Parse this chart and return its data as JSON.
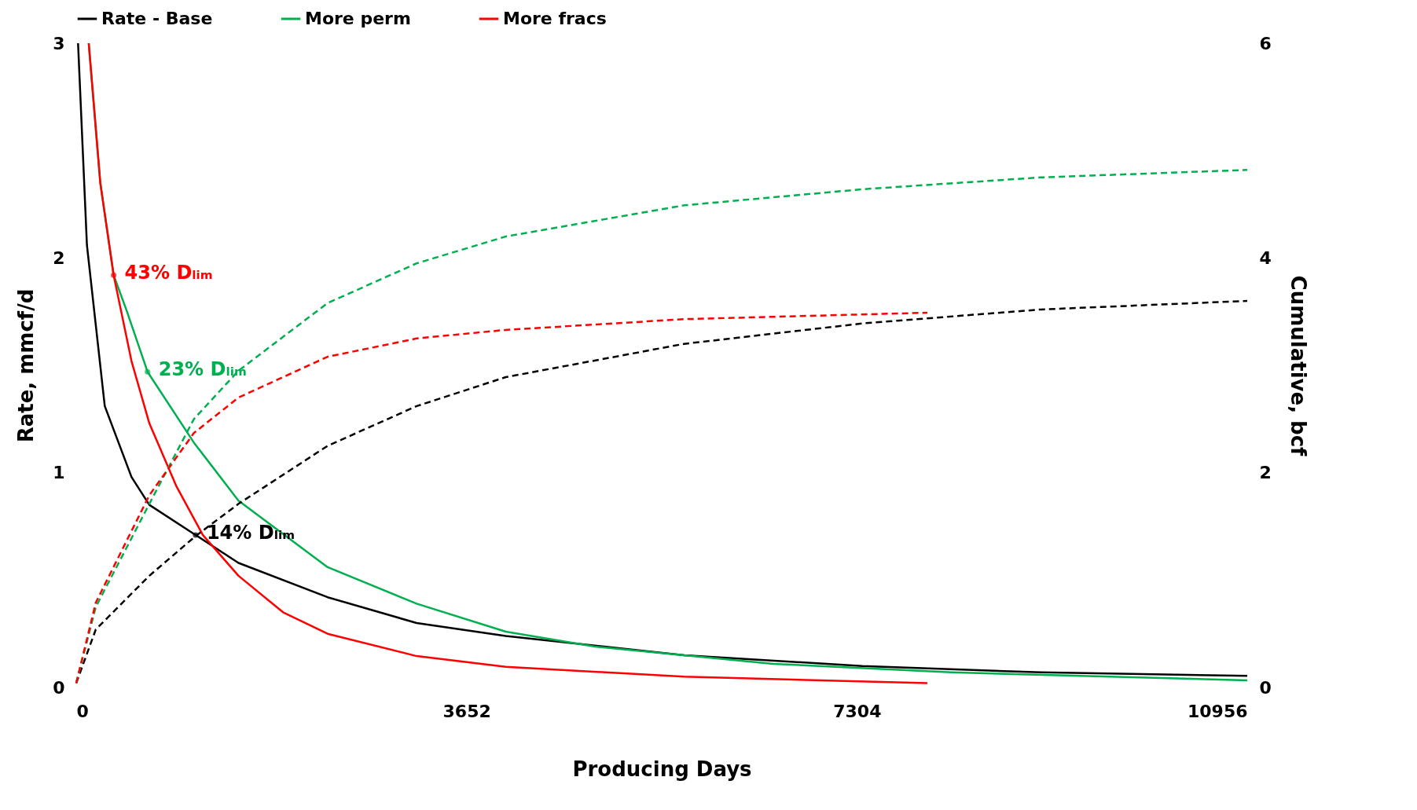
{
  "chart_data": {
    "type": "line",
    "xlabel": "Producing Days",
    "ylabel": "Rate, mmcf/d",
    "y2label": "Cumulative, bcf",
    "xlim": [
      0,
      10956
    ],
    "xticks": [
      0,
      3652,
      7304,
      10956
    ],
    "ylim": [
      0,
      3
    ],
    "yticks": [
      0,
      1,
      2,
      3
    ],
    "y2lim": [
      0,
      6
    ],
    "y2ticks": [
      0,
      2,
      4,
      6
    ],
    "grid": false,
    "legend": "top",
    "line_style": "solid",
    "marker": "none",
    "series": [
      {
        "name": "Rate - Base",
        "color": "#000000",
        "x": [
          17,
          100,
          267,
          517,
          684,
          1117,
          1518,
          2352,
          3185,
          4019,
          5687,
          7354,
          9023,
          10956
        ],
        "values": [
          3,
          2.06,
          1.31,
          0.98,
          0.85,
          0.71,
          0.58,
          0.42,
          0.3,
          0.24,
          0.15,
          0.1,
          0.07,
          0.054
        ]
      },
      {
        "name": "More perm",
        "color": "#00b050",
        "x": [
          117,
          225,
          350,
          475,
          667,
          1101,
          1518,
          2352,
          3185,
          4019,
          4853,
          6521,
          8188,
          10956
        ],
        "values": [
          3,
          2.35,
          1.92,
          1.75,
          1.47,
          1.14,
          0.87,
          0.56,
          0.39,
          0.26,
          0.19,
          0.11,
          0.07,
          0.033
        ]
      },
      {
        "name": "More fracs",
        "color": "#ff0000",
        "x": [
          117,
          225,
          350,
          517,
          684,
          934,
          1184,
          1518,
          1935,
          2352,
          3185,
          4019,
          5687,
          7963
        ],
        "values": [
          3,
          2.35,
          1.92,
          1.52,
          1.23,
          0.94,
          0.71,
          0.52,
          0.35,
          0.25,
          0.146,
          0.096,
          0.05,
          0.02
        ]
      },
      {
        "color": "#000000",
        "axis": "y2",
        "line_style": "dashed",
        "x": [
          0,
          183,
          684,
          1117,
          1518,
          2352,
          3185,
          4019,
          5687,
          7354,
          9023,
          10956
        ],
        "values": [
          0.04,
          0.54,
          1.04,
          1.41,
          1.71,
          2.25,
          2.62,
          2.89,
          3.2,
          3.39,
          3.52,
          3.6
        ]
      },
      {
        "color": "#00b050",
        "axis": "y2",
        "line_style": "dashed",
        "x": [
          0,
          183,
          684,
          1101,
          1518,
          2352,
          3185,
          4019,
          5687,
          7354,
          9023,
          10956
        ],
        "values": [
          0.04,
          0.75,
          1.71,
          2.5,
          2.95,
          3.58,
          3.95,
          4.2,
          4.49,
          4.64,
          4.75,
          4.82
        ]
      },
      {
        "color": "#ff0000",
        "axis": "y2",
        "line_style": "dashed",
        "x": [
          0,
          183,
          684,
          1101,
          1518,
          2352,
          3185,
          4019,
          5687,
          7963
        ],
        "values": [
          0.04,
          0.79,
          1.79,
          2.37,
          2.7,
          3.08,
          3.25,
          3.33,
          3.43,
          3.49
        ]
      }
    ],
    "annotations": [
      {
        "text": "14% Dₗᵢₘ",
        "x": 1117,
        "y": 0.71
      },
      {
        "text": "23% Dₗᵢₘ",
        "x": 667,
        "y": 1.47
      },
      {
        "text": "43% Dₗᵢₘ",
        "x": 350,
        "y": 1.92
      }
    ]
  }
}
